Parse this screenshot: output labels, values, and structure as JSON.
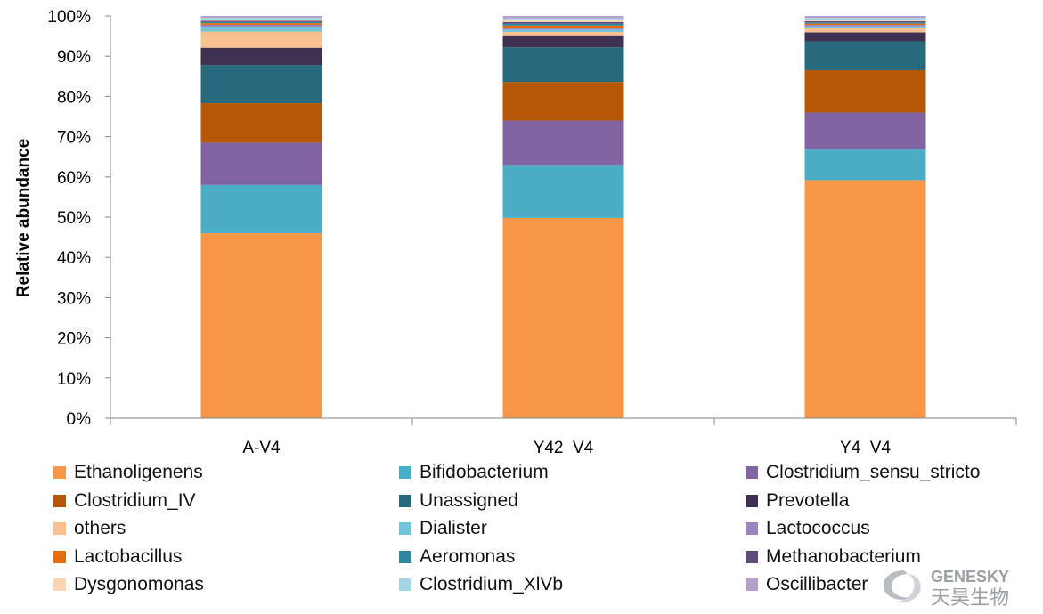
{
  "chart_data": {
    "type": "bar",
    "stacked": true,
    "percent": true,
    "ylabel": "Relative abundance",
    "xlabel": "",
    "ylim": [
      0,
      100
    ],
    "yticks": [
      "0%",
      "10%",
      "20%",
      "30%",
      "40%",
      "50%",
      "60%",
      "70%",
      "80%",
      "90%",
      "100%"
    ],
    "categories": [
      "A-V4",
      "Y42_V4",
      "Y4_V4"
    ],
    "legend_position": "bottom",
    "series": [
      {
        "name": "Ethanoligenens",
        "color": "#F79646",
        "values": [
          46.0,
          49.8,
          59.2
        ]
      },
      {
        "name": "Bifidobacterium",
        "color": "#4BACC6",
        "values": [
          12.0,
          13.2,
          7.6
        ]
      },
      {
        "name": "Clostridium_sensu_stricto",
        "color": "#8064A2",
        "values": [
          10.5,
          11.0,
          9.2
        ]
      },
      {
        "name": "Clostridium_IV",
        "color": "#B65708",
        "values": [
          9.8,
          9.6,
          10.5
        ]
      },
      {
        "name": "Unassigned",
        "color": "#276A7C",
        "values": [
          9.5,
          8.6,
          7.2
        ]
      },
      {
        "name": "Prevotella",
        "color": "#3F3151",
        "values": [
          4.3,
          3.0,
          2.2
        ]
      },
      {
        "name": "others",
        "color": "#FAC090",
        "values": [
          4.0,
          0.8,
          1.0
        ]
      },
      {
        "name": "Dialister",
        "color": "#74C3D7",
        "values": [
          1.2,
          0.6,
          0.5
        ]
      },
      {
        "name": "Lactococcus",
        "color": "#9C85BE",
        "values": [
          0.5,
          0.5,
          0.4
        ]
      },
      {
        "name": "Lactobacillus",
        "color": "#E46C0A",
        "values": [
          0.4,
          0.5,
          0.3
        ]
      },
      {
        "name": "Aeromonas",
        "color": "#31859C",
        "values": [
          0.3,
          0.5,
          0.3
        ]
      },
      {
        "name": "Methanobacterium",
        "color": "#604A7B",
        "values": [
          0.3,
          0.4,
          0.3
        ]
      },
      {
        "name": "Dysgonomonas",
        "color": "#FCD5B5",
        "values": [
          0.3,
          0.6,
          0.4
        ]
      },
      {
        "name": "Clostridium_XlVb",
        "color": "#A5D5E2",
        "values": [
          0.4,
          0.3,
          0.4
        ]
      },
      {
        "name": "Oscillibacter",
        "color": "#B3A2C7",
        "values": [
          0.5,
          0.6,
          0.5
        ]
      }
    ]
  },
  "watermark": {
    "brand": "GENESKY",
    "chinese": "天昊生物"
  }
}
